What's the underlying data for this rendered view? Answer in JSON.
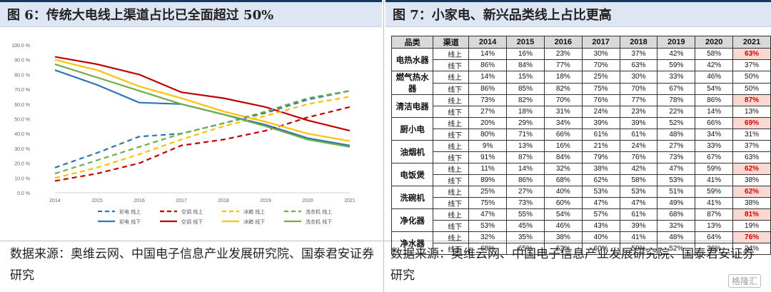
{
  "left_title": "图 6：传统大电线上渠道占比已全面超过 50%",
  "right_title": "图 7：小家电、新兴品类线上占比更高",
  "left_source": "数据来源：奥维云网、中国电子信息产业发展研究院、国泰君安证券研究",
  "right_source": "数据来源：奥维云网、中国电子信息产业发展研究院、国泰君安证券研究",
  "watermark": "格隆汇",
  "colors": {
    "blue": "#2e75b6",
    "red": "#c00000",
    "yellow": "#ffc000",
    "green": "#70ad47"
  },
  "chart_data": [
    {
      "type": "line",
      "x": [
        "2014",
        "2015",
        "2016",
        "2017",
        "2018",
        "2019",
        "2020",
        "2021"
      ],
      "ylim": [
        0,
        100
      ],
      "yticks": [
        "0.0 %",
        "10.0 %",
        "20.0 %",
        "30.0 %",
        "40.0 %",
        "50.0 %",
        "60.0 %",
        "70.0 %",
        "80.0 %",
        "90.0 %",
        "100.0 %"
      ],
      "series": [
        {
          "name": "彩电 线上",
          "color": "blue",
          "dash": true,
          "values": [
            17,
            27,
            38,
            40,
            47,
            54,
            63,
            69
          ]
        },
        {
          "name": "彩电 线下",
          "color": "blue",
          "dash": false,
          "values": [
            83,
            73,
            61,
            60,
            53,
            46,
            37,
            32
          ]
        },
        {
          "name": "空调 线上",
          "color": "red",
          "dash": true,
          "values": [
            8,
            13,
            20,
            32,
            36,
            42,
            51,
            58
          ]
        },
        {
          "name": "空调 线下",
          "color": "red",
          "dash": false,
          "values": [
            92,
            87,
            80,
            68,
            64,
            58,
            49,
            42
          ]
        },
        {
          "name": "冰箱 线上",
          "color": "yellow",
          "dash": true,
          "values": [
            10,
            17,
            26,
            36,
            45,
            52,
            60,
            65
          ]
        },
        {
          "name": "冰箱 线下",
          "color": "yellow",
          "dash": false,
          "values": [
            90,
            83,
            72,
            64,
            55,
            48,
            40,
            35
          ]
        },
        {
          "name": "洗衣机 线上",
          "color": "green",
          "dash": true,
          "values": [
            13,
            22,
            31,
            40,
            47,
            55,
            64,
            69
          ]
        },
        {
          "name": "洗衣机 线下",
          "color": "green",
          "dash": false,
          "values": [
            87,
            78,
            69,
            60,
            53,
            45,
            36,
            31
          ]
        }
      ]
    },
    {
      "type": "table",
      "headers": [
        "品类",
        "渠道",
        "2014",
        "2015",
        "2016",
        "2017",
        "2018",
        "2019",
        "2020",
        "2021"
      ],
      "rows": [
        {
          "category": "电热水器",
          "online": [
            "14%",
            "16%",
            "23%",
            "30%",
            "37%",
            "42%",
            "58%",
            "63%"
          ],
          "offline": [
            "86%",
            "84%",
            "77%",
            "70%",
            "63%",
            "59%",
            "42%",
            "37%"
          ],
          "highlight": true
        },
        {
          "category": "燃气热水器",
          "online": [
            "14%",
            "15%",
            "18%",
            "25%",
            "30%",
            "33%",
            "46%",
            "50%"
          ],
          "offline": [
            "86%",
            "85%",
            "82%",
            "75%",
            "70%",
            "67%",
            "54%",
            "50%"
          ],
          "highlight": false
        },
        {
          "category": "清洁电器",
          "online": [
            "73%",
            "82%",
            "70%",
            "76%",
            "77%",
            "78%",
            "86%",
            "87%"
          ],
          "offline": [
            "27%",
            "18%",
            "31%",
            "24%",
            "23%",
            "22%",
            "14%",
            "13%"
          ],
          "highlight": true
        },
        {
          "category": "厨小电",
          "online": [
            "20%",
            "29%",
            "34%",
            "39%",
            "39%",
            "52%",
            "66%",
            "69%"
          ],
          "offline": [
            "80%",
            "71%",
            "66%",
            "61%",
            "61%",
            "48%",
            "34%",
            "31%"
          ],
          "highlight": true
        },
        {
          "category": "油烟机",
          "online": [
            "9%",
            "13%",
            "16%",
            "21%",
            "24%",
            "27%",
            "33%",
            "37%"
          ],
          "offline": [
            "91%",
            "87%",
            "84%",
            "79%",
            "76%",
            "73%",
            "67%",
            "63%"
          ],
          "highlight": false
        },
        {
          "category": "电饭煲",
          "online": [
            "11%",
            "14%",
            "32%",
            "38%",
            "42%",
            "47%",
            "59%",
            "62%"
          ],
          "offline": [
            "89%",
            "86%",
            "68%",
            "62%",
            "58%",
            "53%",
            "41%",
            "38%"
          ],
          "highlight": true
        },
        {
          "category": "洗碗机",
          "online": [
            "25%",
            "27%",
            "40%",
            "53%",
            "53%",
            "51%",
            "59%",
            "62%"
          ],
          "offline": [
            "75%",
            "73%",
            "60%",
            "47%",
            "47%",
            "49%",
            "41%",
            "38%"
          ],
          "highlight": true
        },
        {
          "category": "净化器",
          "online": [
            "47%",
            "55%",
            "54%",
            "57%",
            "61%",
            "68%",
            "87%",
            "81%"
          ],
          "offline": [
            "53%",
            "45%",
            "46%",
            "43%",
            "39%",
            "32%",
            "13%",
            "19%"
          ],
          "highlight": true
        },
        {
          "category": "净水器",
          "online": [
            "32%",
            "35%",
            "38%",
            "40%",
            "41%",
            "48%",
            "64%",
            "76%"
          ],
          "offline": [
            "68%",
            "65%",
            "62%",
            "60%",
            "59%",
            "52%",
            "36%",
            "24%"
          ],
          "highlight": true
        }
      ],
      "online_label": "线上",
      "offline_label": "线下"
    }
  ]
}
